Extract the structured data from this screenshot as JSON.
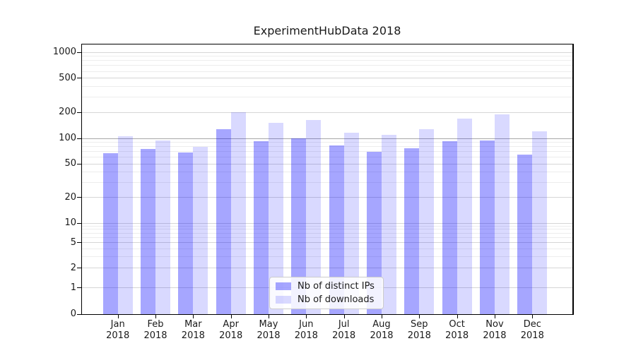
{
  "figure": {
    "title": "ExperimentHubData 2018"
  },
  "chart_data": {
    "type": "bar",
    "title": "ExperimentHubData 2018",
    "categories": [
      "Jan",
      "Feb",
      "Mar",
      "Apr",
      "May",
      "Jun",
      "Jul",
      "Aug",
      "Sep",
      "Oct",
      "Nov",
      "Dec"
    ],
    "category_year": "2018",
    "series": [
      {
        "name": "Nb of distinct IPs",
        "color": "rgba(0,0,255,0.35)",
        "values": [
          67,
          75,
          68,
          127,
          92,
          100,
          83,
          70,
          76,
          93,
          94,
          64
        ]
      },
      {
        "name": "Nb of downloads",
        "color": "rgba(0,0,255,0.15)",
        "values": [
          105,
          94,
          80,
          200,
          152,
          164,
          116,
          110,
          128,
          170,
          190,
          120
        ]
      }
    ],
    "xlabel": "",
    "ylabel": "",
    "yscale": "log (symlog, linear below 1)",
    "ylim": [
      0,
      1400
    ],
    "y_major_ticks": [
      0,
      1,
      2,
      5,
      10,
      20,
      50,
      100,
      200,
      500,
      1000
    ],
    "y_minor_ticks": [
      3,
      4,
      6,
      7,
      8,
      9,
      30,
      40,
      60,
      70,
      80,
      90,
      300,
      400,
      600,
      700,
      800,
      900
    ],
    "emphasized_gridline": 100,
    "grid": true,
    "legend_position": "lower center inside plot"
  }
}
